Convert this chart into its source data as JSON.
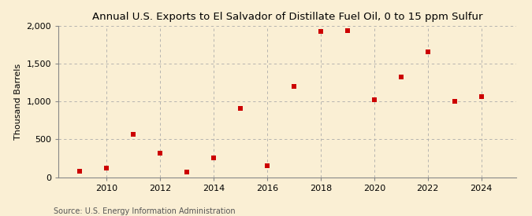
{
  "title": "Annual U.S. Exports to El Salvador of Distillate Fuel Oil, 0 to 15 ppm Sulfur",
  "ylabel": "Thousand Barrels",
  "source": "Source: U.S. Energy Information Administration",
  "years": [
    2009,
    2010,
    2011,
    2012,
    2013,
    2014,
    2015,
    2016,
    2017,
    2018,
    2019,
    2020,
    2021,
    2022,
    2023,
    2024
  ],
  "values": [
    75,
    120,
    570,
    320,
    65,
    255,
    910,
    155,
    1200,
    1930,
    1940,
    1020,
    1320,
    1660,
    1000,
    1060
  ],
  "ylim": [
    0,
    2000
  ],
  "yticks": [
    0,
    500,
    1000,
    1500,
    2000
  ],
  "xticks": [
    2010,
    2012,
    2014,
    2016,
    2018,
    2020,
    2022,
    2024
  ],
  "xlim": [
    2008.2,
    2025.3
  ],
  "marker_color": "#cc0000",
  "marker": "s",
  "marker_size": 18,
  "bg_color": "#faefd4",
  "grid_color": "#aaaaaa",
  "title_fontsize": 9.5,
  "label_fontsize": 8,
  "tick_fontsize": 8,
  "source_fontsize": 7
}
